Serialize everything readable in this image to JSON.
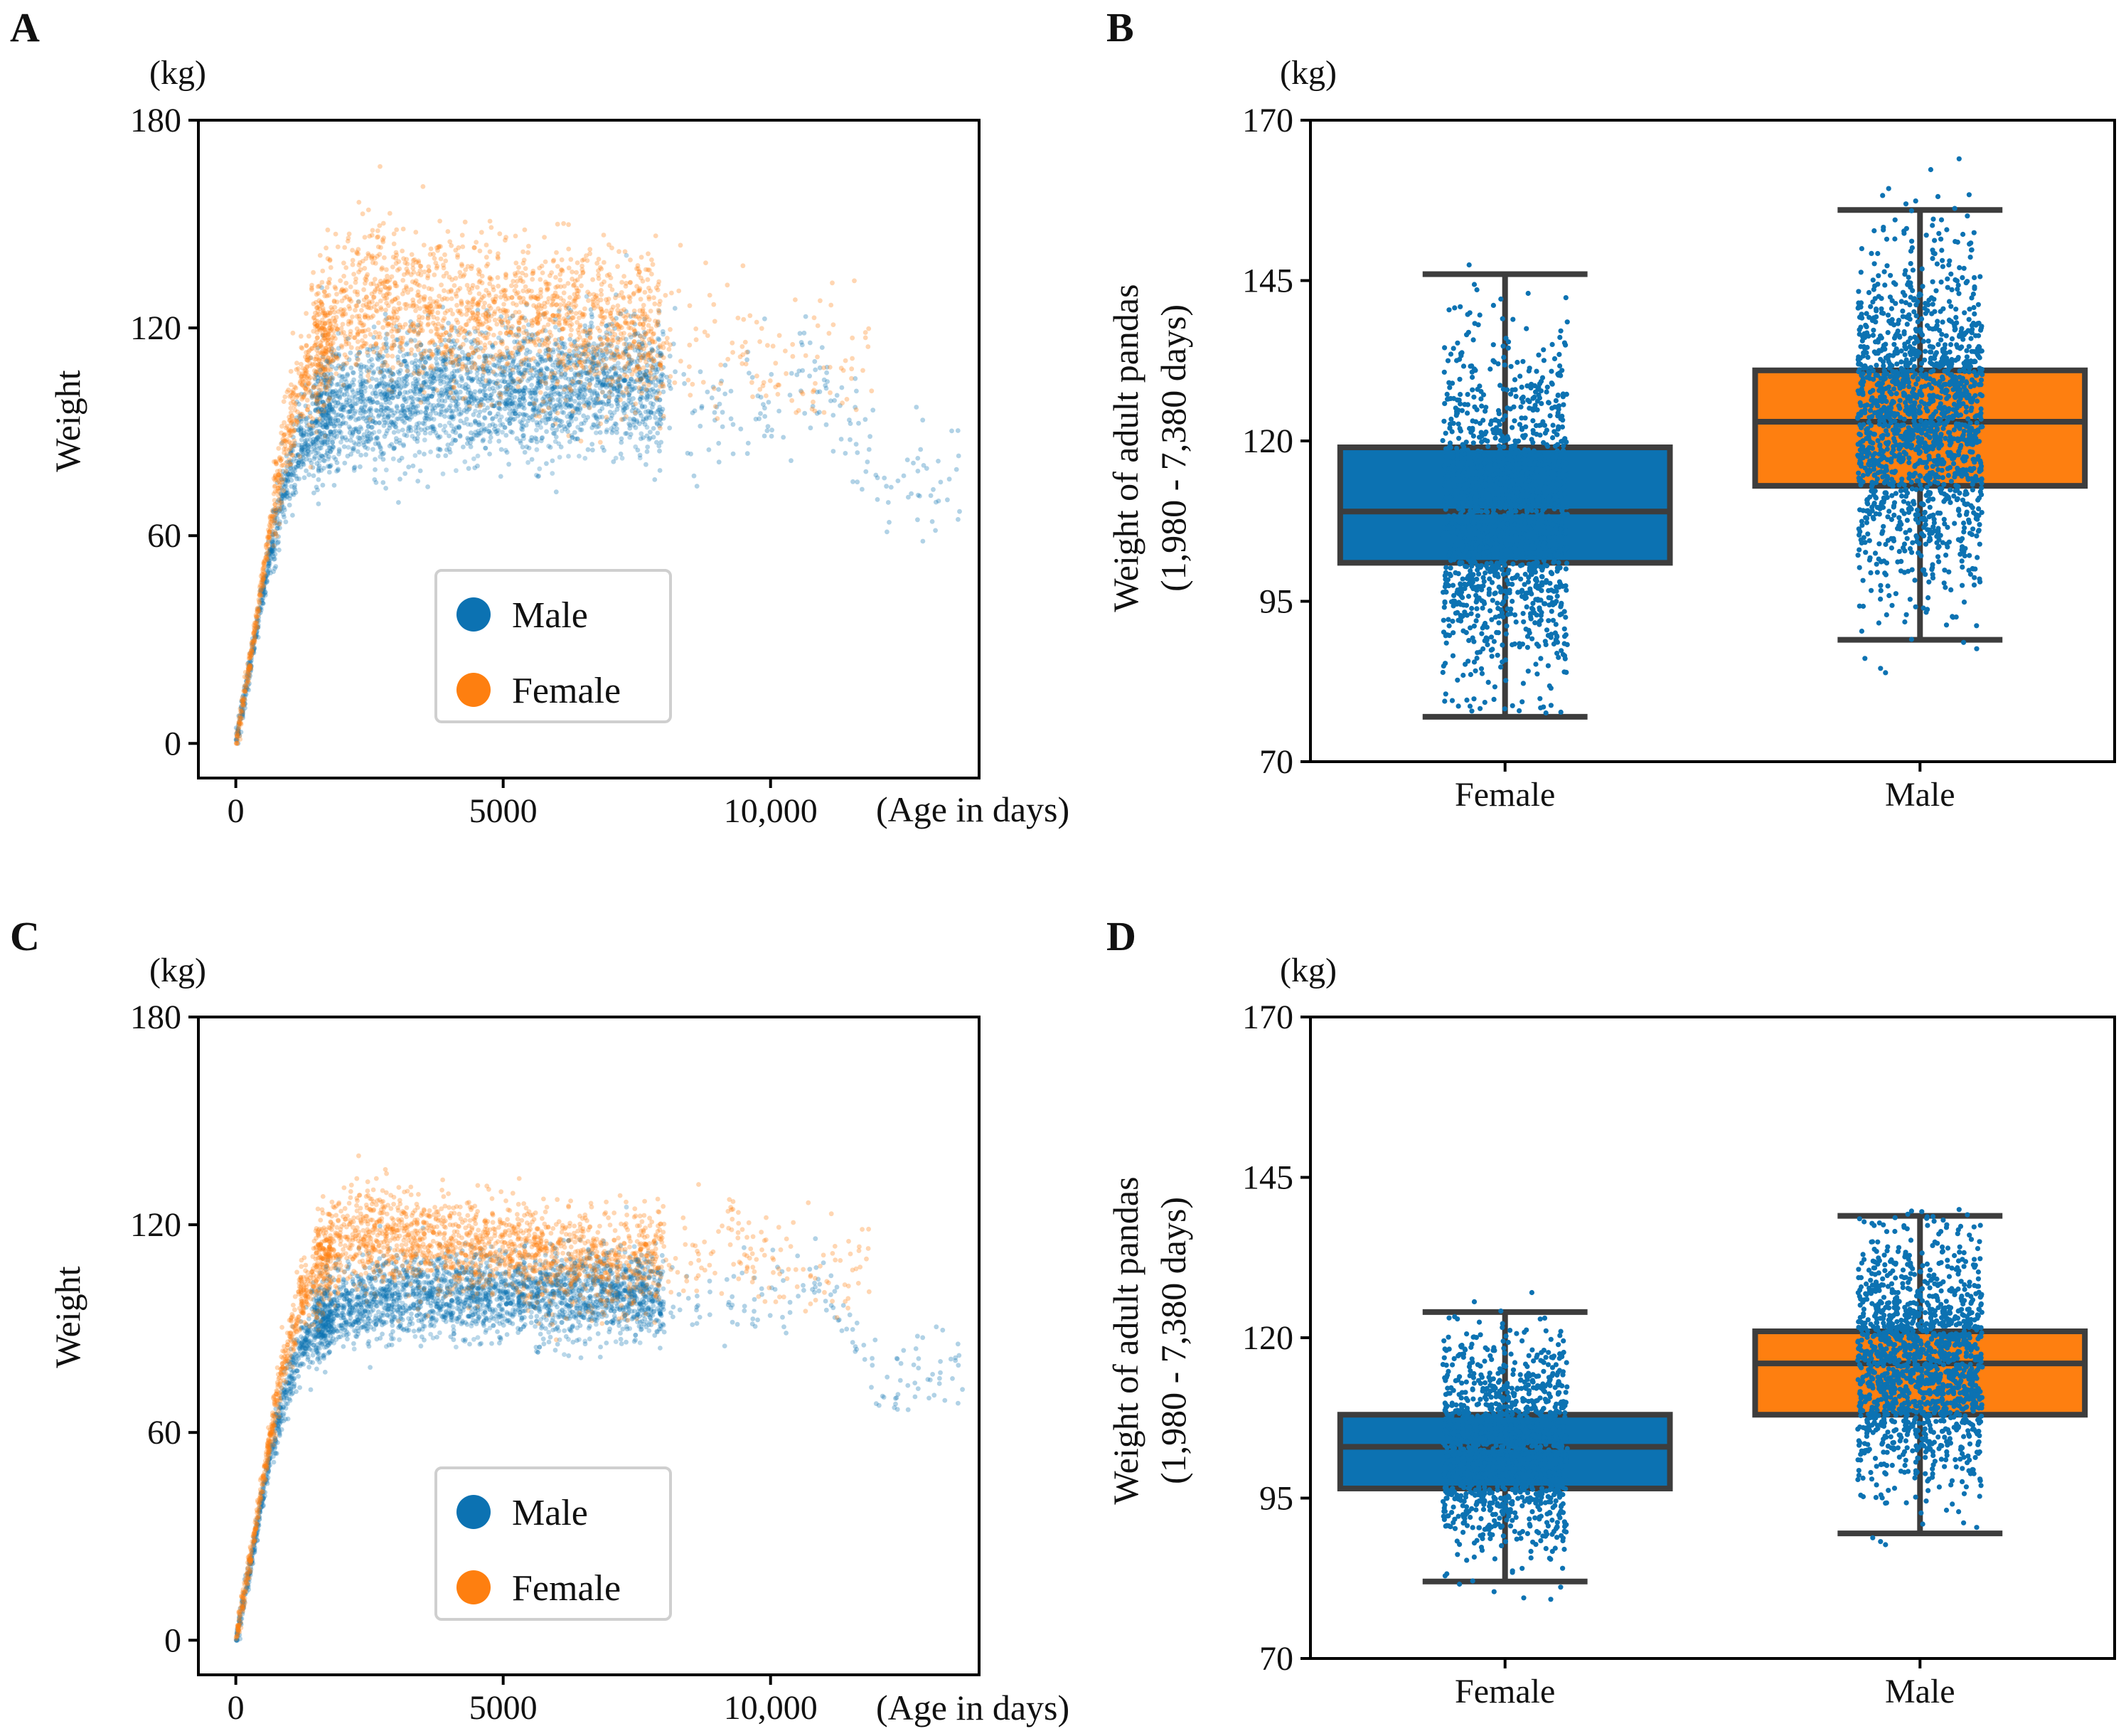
{
  "colors": {
    "male": "#0c72b2",
    "female": "#fe7f10",
    "box_edge": "#3d3d3d",
    "axis": "#000000"
  },
  "chart_data": [
    {
      "panel": "A",
      "type": "scatter",
      "unit_label": "(kg)",
      "ylabel": "Weight",
      "xlabel": "(Age in days)",
      "xlim": [
        -700,
        13900
      ],
      "ylim": [
        -10,
        180
      ],
      "xticks": [
        0,
        5000,
        10000
      ],
      "xtick_labels": [
        "0",
        "5000",
        "10,000"
      ],
      "yticks": [
        0,
        60,
        120,
        180
      ],
      "ytick_labels": [
        "0",
        "60",
        "120",
        "180"
      ],
      "legend": [
        {
          "label": "Male",
          "color": "#0c72b2"
        },
        {
          "label": "Female",
          "color": "#fe7f10"
        }
      ],
      "series": [
        {
          "name": "Male",
          "curve_x": [
            0,
            300,
            600,
            900,
            1200,
            1500,
            2000,
            3000,
            5000,
            7000,
            8000,
            9000,
            10000,
            11000,
            11500,
            12000,
            12500,
            13000,
            13500
          ],
          "curve_y": [
            0,
            25,
            52,
            72,
            85,
            92,
            97,
            100,
            102,
            103,
            101,
            98,
            103,
            105,
            92,
            78,
            75,
            77,
            79
          ],
          "x_range": [
            0,
            13600
          ],
          "spread": 9
        },
        {
          "name": "Female",
          "curve_x": [
            0,
            300,
            600,
            900,
            1200,
            1500,
            2000,
            2500,
            3000,
            4000,
            5000,
            6000,
            7000,
            8000,
            9000,
            10000,
            11000,
            11800
          ],
          "curve_y": [
            0,
            27,
            58,
            85,
            103,
            113,
            124,
            128,
            126,
            123,
            124,
            122,
            120,
            116,
            118,
            112,
            110,
            112
          ],
          "x_range": [
            0,
            11900
          ],
          "spread": 11
        }
      ]
    },
    {
      "panel": "B",
      "type": "box",
      "unit_label": "(kg)",
      "ylabel": [
        "Weight of adult pandas",
        "(1,980 - 7,380 days)"
      ],
      "categories": [
        "Female",
        "Male"
      ],
      "ylim": [
        70,
        170
      ],
      "yticks": [
        70,
        95,
        120,
        145,
        170
      ],
      "ytick_labels": [
        "70",
        "95",
        "120",
        "145",
        "170"
      ],
      "boxes": [
        {
          "category": "Female",
          "fill": "#0c72b2",
          "whisker_low": 77,
          "q1": 101,
          "median": 109,
          "q3": 119,
          "whisker_high": 146,
          "points_range": [
            77,
            150
          ],
          "points": 1400
        },
        {
          "category": "Male",
          "fill": "#fe7f10",
          "whisker_low": 89,
          "q1": 113,
          "median": 123,
          "q3": 131,
          "whisker_high": 156,
          "points_range": [
            82,
            164
          ],
          "points": 1600
        }
      ]
    },
    {
      "panel": "C",
      "type": "scatter",
      "unit_label": "(kg)",
      "ylabel": "Weight",
      "xlabel": "(Age in days)",
      "xlim": [
        -700,
        13900
      ],
      "ylim": [
        -10,
        180
      ],
      "xticks": [
        0,
        5000,
        10000
      ],
      "xtick_labels": [
        "0",
        "5000",
        "10,000"
      ],
      "yticks": [
        0,
        60,
        120,
        180
      ],
      "ytick_labels": [
        "0",
        "60",
        "120",
        "180"
      ],
      "legend": [
        {
          "label": "Male",
          "color": "#0c72b2"
        },
        {
          "label": "Female",
          "color": "#fe7f10"
        }
      ],
      "series": [
        {
          "name": "Male",
          "curve_x": [
            0,
            300,
            600,
            900,
            1200,
            1500,
            2000,
            3000,
            5000,
            7000,
            8000,
            9000,
            10000,
            11000,
            11500,
            12000,
            12500,
            13000,
            13500
          ],
          "curve_y": [
            0,
            24,
            50,
            70,
            84,
            91,
            96,
            99,
            100,
            100,
            98,
            96,
            101,
            104,
            92,
            76,
            74,
            77,
            78
          ],
          "x_range": [
            0,
            13600
          ],
          "spread": 6
        },
        {
          "name": "Female",
          "curve_x": [
            0,
            300,
            600,
            900,
            1200,
            1500,
            2000,
            2500,
            3000,
            4000,
            5000,
            6000,
            7000,
            8000,
            9000,
            10000,
            11000,
            11800
          ],
          "curve_y": [
            0,
            26,
            55,
            80,
            97,
            107,
            115,
            118,
            116,
            113,
            113,
            110,
            108,
            112,
            118,
            110,
            106,
            110
          ],
          "x_range": [
            0,
            11900
          ],
          "spread": 7
        }
      ]
    },
    {
      "panel": "D",
      "type": "box",
      "unit_label": "(kg)",
      "ylabel": [
        "Weight of adult pandas",
        "(1,980 - 7,380 days)"
      ],
      "categories": [
        "Female",
        "Male"
      ],
      "ylim": [
        70,
        170
      ],
      "yticks": [
        70,
        95,
        120,
        145,
        170
      ],
      "ytick_labels": [
        "70",
        "95",
        "120",
        "145",
        "170"
      ],
      "boxes": [
        {
          "category": "Female",
          "fill": "#0c72b2",
          "whisker_low": 82,
          "q1": 96.5,
          "median": 103,
          "q3": 108,
          "whisker_high": 124,
          "points_range": [
            78,
            130
          ],
          "points": 1300
        },
        {
          "category": "Male",
          "fill": "#fe7f10",
          "whisker_low": 89.5,
          "q1": 108,
          "median": 116,
          "q3": 121,
          "whisker_high": 139,
          "points_range": [
            83,
            140
          ],
          "points": 1500
        }
      ]
    }
  ]
}
